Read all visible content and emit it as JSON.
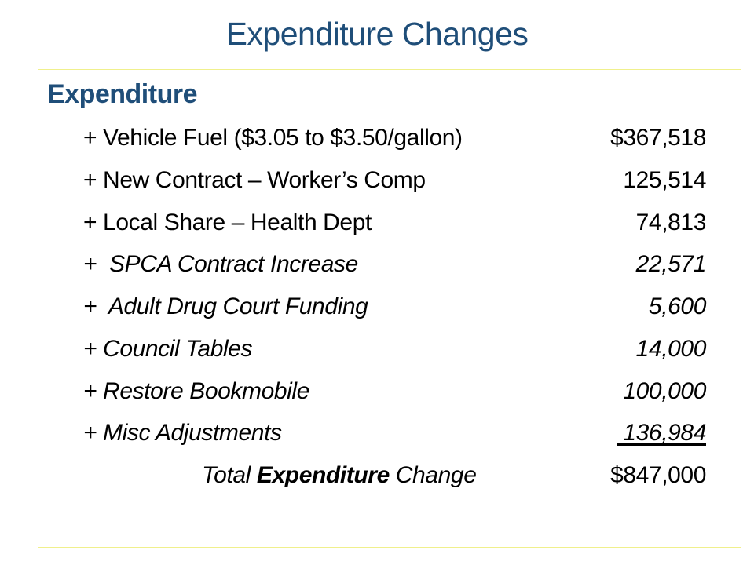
{
  "title": "Expenditure Changes",
  "section_heading": "Expenditure",
  "items": [
    {
      "label": "+ Vehicle Fuel ($3.05 to $3.50/gallon)",
      "amount": "$367,518",
      "italic": false
    },
    {
      "label": "+ New Contract – Worker’s Comp",
      "amount": "125,514",
      "italic": false
    },
    {
      "label": "+ Local Share – Health Dept",
      "amount": "74,813",
      "italic": false
    },
    {
      "label": "+  SPCA Contract Increase",
      "amount": "22,571",
      "italic": true
    },
    {
      "label": "+  Adult Drug Court Funding",
      "amount": "5,600",
      "italic": true
    },
    {
      "label": "+ Council Tables",
      "amount": "14,000",
      "italic": true
    },
    {
      "label": "+ Restore Bookmobile",
      "amount": "100,000",
      "italic": true
    },
    {
      "label": "+ Misc Adjustments",
      "amount": " 136,984",
      "italic": true
    }
  ],
  "total": {
    "prefix": "Total ",
    "bold_word": "Expenditure",
    "suffix": " Change",
    "amount": "$847,000"
  }
}
